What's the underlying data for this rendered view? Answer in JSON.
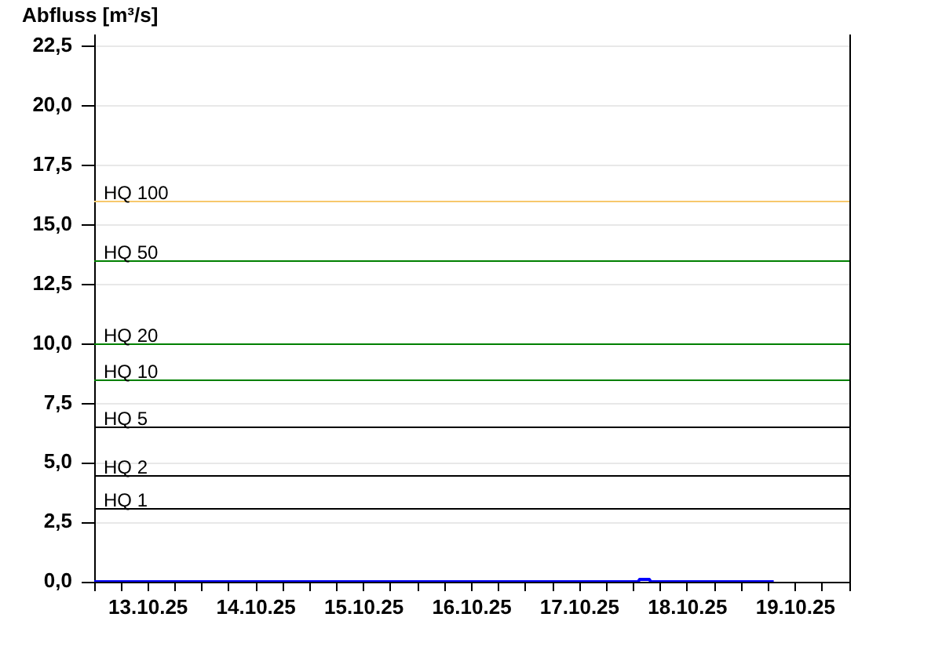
{
  "chart_data": {
    "type": "line",
    "ylabel": "Abfluss [m³/s]",
    "x": [
      "--10-13T00:00",
      "--10-18T01:00",
      "--10-18T01:20",
      "--10-18T03:30",
      "--10-18T03:50",
      "--10-19T07:10"
    ],
    "series": [
      {
        "color": "#0000ff",
        "values": [
          0,
          0,
          0.1,
          0.1,
          0,
          0
        ]
      }
    ],
    "ylim": [
      0,
      23
    ],
    "yticks": [
      {
        "value": 0,
        "label": "0,0"
      },
      {
        "value": 2.5,
        "label": "2,5"
      },
      {
        "value": 5,
        "label": "5,0"
      },
      {
        "value": 7.5,
        "label": "7,5"
      },
      {
        "value": 10,
        "label": "10,0"
      },
      {
        "value": 12.5,
        "label": "12,5"
      },
      {
        "value": 15,
        "label": "15,0"
      },
      {
        "value": 17.5,
        "label": "17,5"
      },
      {
        "value": 20,
        "label": "20,0"
      },
      {
        "value": 22.5,
        "label": "22,5"
      }
    ],
    "xlim": [
      "--10-13T00:00",
      "--10-20T00:00"
    ],
    "xticks": [
      {
        "value": "--10-13T00:00",
        "label": null
      },
      {
        "value": "--10-13T06:00",
        "label": null
      },
      {
        "value": "--10-13T12:00",
        "label": "13.10.25"
      },
      {
        "value": "--10-13T18:00",
        "label": null
      },
      {
        "value": "--10-14T00:00",
        "label": null
      },
      {
        "value": "--10-14T06:00",
        "label": null
      },
      {
        "value": "--10-14T12:00",
        "label": "14.10.25"
      },
      {
        "value": "--10-14T18:00",
        "label": null
      },
      {
        "value": "--10-15T00:00",
        "label": null
      },
      {
        "value": "--10-15T06:00",
        "label": null
      },
      {
        "value": "--10-15T12:00",
        "label": "15.10.25"
      },
      {
        "value": "--10-15T18:00",
        "label": null
      },
      {
        "value": "--10-16T00:00",
        "label": null
      },
      {
        "value": "--10-16T06:00",
        "label": null
      },
      {
        "value": "--10-16T12:00",
        "label": "16.10.25"
      },
      {
        "value": "--10-16T18:00",
        "label": null
      },
      {
        "value": "--10-17T00:00",
        "label": null
      },
      {
        "value": "--10-17T06:00",
        "label": null
      },
      {
        "value": "--10-17T12:00",
        "label": "17.10.25"
      },
      {
        "value": "--10-17T18:00",
        "label": null
      },
      {
        "value": "--10-18T00:00",
        "label": null
      },
      {
        "value": "--10-18T06:00",
        "label": null
      },
      {
        "value": "--10-18T12:00",
        "label": "18.10.25"
      },
      {
        "value": "--10-18T18:00",
        "label": null
      },
      {
        "value": "--10-19T00:00",
        "label": null
      },
      {
        "value": "--10-19T06:00",
        "label": null
      },
      {
        "value": "--10-19T12:00",
        "label": "19.10.25"
      },
      {
        "value": "--10-19T18:00",
        "label": null
      },
      {
        "value": "--10-20T00:00",
        "label": null
      }
    ],
    "grid": "y",
    "ref_lines": [
      {
        "axis": "y",
        "value": 16,
        "label": "HQ 100",
        "color": "#f7c86c"
      },
      {
        "axis": "y",
        "value": 13.5,
        "label": "HQ 50",
        "color": "#008000"
      },
      {
        "axis": "y",
        "value": 10,
        "label": "HQ 20",
        "color": "#008000"
      },
      {
        "axis": "y",
        "value": 8.5,
        "label": "HQ 10",
        "color": "#008000"
      },
      {
        "axis": "y",
        "value": 6.5,
        "label": "HQ 5",
        "color": "#000000"
      },
      {
        "axis": "y",
        "value": 4.5,
        "label": "HQ 2",
        "color": "#000000"
      },
      {
        "axis": "y",
        "value": 3.1,
        "label": "HQ 1",
        "color": "#000000"
      }
    ]
  }
}
